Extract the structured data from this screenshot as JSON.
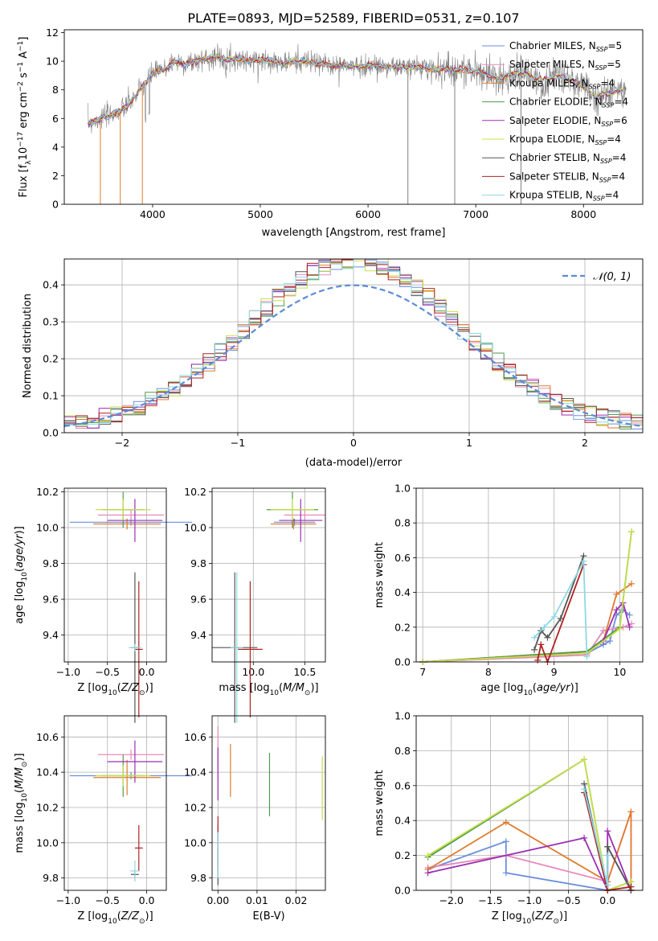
{
  "figure_title": "PLATE=0893, MJD=52589, FIBERID=0531, z=0.107",
  "colors": {
    "Chabrier MILES": "#6a8fdb",
    "Salpeter MILES": "#e88ab8",
    "Kroupa MILES": "#e07b2c",
    "Chabrier ELODIE": "#4f9a4f",
    "Salpeter ELODIE": "#9b2fb2",
    "Kroupa ELODIE": "#c8e04a",
    "Chabrier STELIB": "#555555",
    "Salpeter STELIB": "#b02222",
    "Kroupa STELIB": "#8ed8e2",
    "spectrum": "#808080",
    "normal": "#5b8bd6",
    "grid": "#b0b0b0"
  },
  "chart_data": [
    {
      "id": "spectrum",
      "type": "line",
      "title": "PLATE=0893, MJD=52589, FIBERID=0531, z=0.107",
      "xlabel": "wavelength [Angstrom, rest frame]",
      "ylabel": "Flux [f_λ10^-17 erg cm^-2 s^-1 A^-1]",
      "xlim": [
        3180,
        8550
      ],
      "ylim": [
        0,
        12.2
      ],
      "xticks": [
        4000,
        5000,
        6000,
        7000,
        8000
      ],
      "yticks": [
        0,
        2,
        4,
        6,
        8,
        10,
        12
      ],
      "grid": false,
      "legend_position": "right",
      "legend": [
        {
          "label": "Chabrier MILES",
          "nssp": "5"
        },
        {
          "label": "Salpeter MILES",
          "nssp": "5"
        },
        {
          "label": "Kroupa MILES",
          "nssp": "4"
        },
        {
          "label": "Chabrier ELODIE",
          "nssp": "4"
        },
        {
          "label": "Salpeter ELODIE",
          "nssp": "6"
        },
        {
          "label": "Kroupa ELODIE",
          "nssp": "4"
        },
        {
          "label": "Chabrier STELIB",
          "nssp": "4"
        },
        {
          "label": "Salpeter STELIB",
          "nssp": "4"
        },
        {
          "label": "Kroupa STELIB",
          "nssp": "4"
        }
      ],
      "data_x": [
        3400,
        3450,
        3500,
        3550,
        3600,
        3650,
        3700,
        3750,
        3800,
        3850,
        3900,
        3950,
        4000,
        4100,
        4200,
        4300,
        4400,
        4500,
        4600,
        4700,
        4800,
        4900,
        5000,
        5100,
        5200,
        5300,
        5400,
        5500,
        5600,
        5700,
        5800,
        5900,
        6000,
        6100,
        6200,
        6300,
        6400,
        6500,
        6600,
        6700,
        6800,
        6900,
        7000,
        7100,
        7200,
        7300,
        7400,
        7500,
        7600,
        7700,
        7800,
        7900,
        8000,
        8100,
        8200,
        8300,
        8400,
        8500
      ],
      "data_y": [
        5.6,
        5.8,
        5.9,
        6.1,
        6.2,
        6.4,
        6.5,
        6.8,
        7.2,
        7.6,
        8.2,
        8.6,
        9.2,
        9.4,
        10.0,
        9.8,
        10.0,
        10.2,
        10.3,
        10.1,
        10.2,
        10.0,
        10.1,
        10.1,
        9.8,
        10.0,
        10.0,
        9.9,
        9.8,
        9.7,
        9.7,
        9.6,
        9.7,
        9.7,
        9.6,
        9.6,
        9.6,
        9.6,
        9.4,
        9.5,
        9.4,
        9.4,
        9.3,
        9.1,
        8.8,
        9.0,
        9.2,
        9.0,
        8.7,
        8.9,
        8.9,
        8.6,
        8.2,
        7.6,
        7.7,
        7.9,
        8.0,
        8.0
      ]
    },
    {
      "id": "residuals",
      "type": "histogram",
      "xlabel": "(data-model)/error",
      "ylabel": "Normed distribution",
      "xlim": [
        -2.5,
        2.5
      ],
      "ylim": [
        0,
        0.47
      ],
      "xticks": [
        -2,
        -1,
        0,
        1,
        2
      ],
      "yticks": [
        0.0,
        0.1,
        0.2,
        0.3,
        0.4
      ],
      "grid": true,
      "legend_position": "top-right",
      "legend": [
        {
          "label": "𝒩(0, 1)",
          "mu": 0,
          "sigma": 1
        }
      ]
    },
    {
      "id": "age-vs-Z",
      "type": "errorbar",
      "xlabel": "Z [log10(Z/Z⊙)]",
      "ylabel": "age  [log10(age/yr)]",
      "xlim": [
        -1.05,
        0.25
      ],
      "ylim": [
        9.25,
        10.22
      ],
      "xticks": [
        -1.0,
        -0.5,
        0.0
      ],
      "yticks": [
        9.4,
        9.6,
        9.8,
        10.0,
        10.2
      ],
      "grid": true,
      "points": [
        {
          "model": "Chabrier MILES",
          "x": -0.2,
          "xerr": 0.78,
          "y": 10.03,
          "yerr": 0.02
        },
        {
          "model": "Salpeter MILES",
          "x": -0.2,
          "xerr": 0.42,
          "y": 10.07,
          "yerr": 0.03
        },
        {
          "model": "Kroupa MILES",
          "x": -0.25,
          "xerr": 0.43,
          "y": 10.02,
          "yerr": 0.03
        },
        {
          "model": "Chabrier ELODIE",
          "x": -0.3,
          "xerr": 0.27,
          "y": 10.1,
          "yerr": 0.1
        },
        {
          "model": "Salpeter ELODIE",
          "x": -0.15,
          "xerr": 0.35,
          "y": 10.04,
          "yerr": 0.12
        },
        {
          "model": "Kroupa ELODIE",
          "x": -0.3,
          "xerr": 0.35,
          "y": 10.1,
          "yerr": 0.06
        },
        {
          "model": "Chabrier STELIB",
          "x": -0.15,
          "xerr": 0.05,
          "y": 9.33,
          "yerr": 0.42
        },
        {
          "model": "Salpeter STELIB",
          "x": -0.1,
          "xerr": 0.05,
          "y": 9.32,
          "yerr": 0.38
        },
        {
          "model": "Kroupa STELIB",
          "x": -0.15,
          "xerr": 0.08,
          "y": 9.33,
          "yerr": 0.02
        }
      ]
    },
    {
      "id": "age-vs-mass",
      "type": "errorbar",
      "xlabel": "mass [log10(M/M⊙)]",
      "ylabel": "",
      "xlim": [
        9.6,
        10.7
      ],
      "ylim": [
        9.25,
        10.22
      ],
      "xticks": [
        10.0,
        10.5
      ],
      "yticks": [
        9.4,
        9.6,
        9.8,
        10.0,
        10.2
      ],
      "grid": true,
      "points": [
        {
          "model": "Chabrier MILES",
          "x": 10.4,
          "xerr": 0.2,
          "y": 10.03,
          "yerr": 0.02
        },
        {
          "model": "Salpeter MILES",
          "x": 10.5,
          "xerr": 0.2,
          "y": 10.07,
          "yerr": 0.03
        },
        {
          "model": "Kroupa MILES",
          "x": 10.39,
          "xerr": 0.22,
          "y": 10.02,
          "yerr": 0.03
        },
        {
          "model": "Chabrier ELODIE",
          "x": 10.38,
          "xerr": 0.25,
          "y": 10.1,
          "yerr": 0.1
        },
        {
          "model": "Salpeter ELODIE",
          "x": 10.46,
          "xerr": 0.21,
          "y": 10.04,
          "yerr": 0.12
        },
        {
          "model": "Kroupa ELODIE",
          "x": 10.38,
          "xerr": 0.21,
          "y": 10.1,
          "yerr": 0.06
        },
        {
          "model": "Chabrier STELIB",
          "x": 9.82,
          "xerr": 0.22,
          "y": 9.33,
          "yerr": 0.42
        },
        {
          "model": "Salpeter STELIB",
          "x": 9.97,
          "xerr": 0.12,
          "y": 9.32,
          "yerr": 0.38
        },
        {
          "model": "Kroupa STELIB",
          "x": 9.84,
          "xerr": 0.06,
          "y": 9.33,
          "yerr": 0.42
        }
      ]
    },
    {
      "id": "massweight-vs-age",
      "type": "line",
      "xlabel": "age  [log10(age/yr)]",
      "ylabel": "mass weight",
      "xlim": [
        6.9,
        10.35
      ],
      "ylim": [
        0,
        1.0
      ],
      "xticks": [
        7,
        8,
        9,
        10
      ],
      "yticks": [
        0.0,
        0.2,
        0.4,
        0.6,
        0.8,
        1.0
      ],
      "grid": true,
      "series": [
        {
          "model": "Chabrier MILES",
          "x": [
            7.0,
            9.5,
            9.75,
            9.85,
            9.95,
            10.05,
            10.15
          ],
          "y": [
            0.0,
            0.05,
            0.1,
            0.12,
            0.27,
            0.3,
            0.27
          ]
        },
        {
          "model": "Salpeter MILES",
          "x": [
            7.0,
            9.5,
            9.75,
            10.05,
            10.18
          ],
          "y": [
            0.0,
            0.04,
            0.18,
            0.2,
            0.22
          ]
        },
        {
          "model": "Kroupa MILES",
          "x": [
            7.0,
            9.5,
            9.75,
            9.95,
            10.18
          ],
          "y": [
            0.0,
            0.06,
            0.12,
            0.39,
            0.45
          ]
        },
        {
          "model": "Chabrier ELODIE",
          "x": [
            7.0,
            9.5,
            10.0,
            10.18
          ],
          "y": [
            0.0,
            0.06,
            0.2,
            0.75
          ]
        },
        {
          "model": "Salpeter ELODIE",
          "x": [
            7.0,
            9.5,
            9.75,
            9.95,
            10.05,
            10.15
          ],
          "y": [
            0.0,
            0.05,
            0.12,
            0.3,
            0.34,
            0.2
          ]
        },
        {
          "model": "Kroupa ELODIE",
          "x": [
            7.0,
            9.5,
            10.0,
            10.18
          ],
          "y": [
            0.0,
            0.05,
            0.19,
            0.75
          ]
        },
        {
          "model": "Chabrier STELIB",
          "x": [
            8.7,
            8.8,
            8.9,
            9.1,
            9.45
          ],
          "y": [
            0.07,
            0.18,
            0.14,
            0.25,
            0.61
          ]
        },
        {
          "model": "Salpeter STELIB",
          "x": [
            8.75,
            8.8,
            8.9,
            9.45
          ],
          "y": [
            0.01,
            0.1,
            0.0,
            0.56
          ]
        },
        {
          "model": "Kroupa STELIB",
          "x": [
            8.7,
            8.85,
            9.0,
            9.45,
            9.5
          ],
          "y": [
            0.14,
            0.2,
            0.26,
            0.58,
            0.03
          ]
        }
      ]
    },
    {
      "id": "mass-vs-Z",
      "type": "errorbar",
      "xlabel": "Z [log10(Z/Z⊙)]",
      "ylabel": "mass [log10(M/M⊙)]",
      "xlim": [
        -1.05,
        0.25
      ],
      "ylim": [
        9.73,
        10.72
      ],
      "xticks": [
        -1.0,
        -0.5,
        0.0
      ],
      "yticks": [
        9.8,
        10.0,
        10.2,
        10.4,
        10.6
      ],
      "grid": true,
      "points": [
        {
          "model": "Chabrier MILES",
          "x": -0.2,
          "xerr": 0.78,
          "y": 10.38,
          "yerr": 0.02
        },
        {
          "model": "Salpeter MILES",
          "x": -0.2,
          "xerr": 0.42,
          "y": 10.5,
          "yerr": 0.03
        },
        {
          "model": "Kroupa MILES",
          "x": -0.25,
          "xerr": 0.43,
          "y": 10.37,
          "yerr": 0.1
        },
        {
          "model": "Chabrier ELODIE",
          "x": -0.3,
          "xerr": 0.27,
          "y": 10.38,
          "yerr": 0.12
        },
        {
          "model": "Salpeter ELODIE",
          "x": -0.15,
          "xerr": 0.35,
          "y": 10.46,
          "yerr": 0.12
        },
        {
          "model": "Kroupa ELODIE",
          "x": -0.3,
          "xerr": 0.35,
          "y": 10.38,
          "yerr": 0.06
        },
        {
          "model": "Chabrier STELIB",
          "x": -0.15,
          "xerr": 0.05,
          "y": 9.82,
          "yerr": 0.02
        },
        {
          "model": "Salpeter STELIB",
          "x": -0.1,
          "xerr": 0.05,
          "y": 9.97,
          "yerr": 0.13
        },
        {
          "model": "Kroupa STELIB",
          "x": -0.15,
          "xerr": 0.06,
          "y": 9.84,
          "yerr": 0.06
        }
      ]
    },
    {
      "id": "mass-vs-ebv",
      "type": "errorbar",
      "xlabel": "E(B-V)",
      "ylabel": "",
      "xlim": [
        -0.0015,
        0.0275
      ],
      "ylim": [
        9.73,
        10.72
      ],
      "xticks": [
        0.0,
        0.01,
        0.02
      ],
      "yticks": [
        9.8,
        10.0,
        10.2,
        10.4,
        10.6
      ],
      "grid": true,
      "points": [
        {
          "model": "Chabrier MILES",
          "x": 0.0,
          "xerr": 0,
          "y": 10.0,
          "yerr": 0.1
        },
        {
          "model": "Salpeter MILES",
          "x": 0.0,
          "xerr": 0,
          "y": 10.5,
          "yerr": 0.16
        },
        {
          "model": "Kroupa MILES",
          "x": 0.0032,
          "xerr": 0,
          "y": 10.41,
          "yerr": 0.15
        },
        {
          "model": "Chabrier ELODIE",
          "x": 0.0132,
          "xerr": 0,
          "y": 10.33,
          "yerr": 0.18
        },
        {
          "model": "Salpeter ELODIE",
          "x": 0.0,
          "xerr": 0,
          "y": 10.39,
          "yerr": 0.15
        },
        {
          "model": "Kroupa ELODIE",
          "x": 0.0267,
          "xerr": 0,
          "y": 10.31,
          "yerr": 0.18
        },
        {
          "model": "Chabrier STELIB",
          "x": 0.0,
          "xerr": 0,
          "y": 9.86,
          "yerr": 0.1
        },
        {
          "model": "Salpeter STELIB",
          "x": 0.0,
          "xerr": 0,
          "y": 10.0,
          "yerr": 0.15
        },
        {
          "model": "Kroupa STELIB",
          "x": 0.0,
          "xerr": 0,
          "y": 9.93,
          "yerr": 0.13
        }
      ]
    },
    {
      "id": "massweight-vs-Z",
      "type": "line",
      "xlabel": "Z [log10(Z/Z⊙)]",
      "ylabel": "mass weight",
      "xlim": [
        -2.45,
        0.45
      ],
      "ylim": [
        0,
        1.0
      ],
      "xticks": [
        -2.0,
        -1.5,
        -1.0,
        -0.5,
        0.0
      ],
      "yticks": [
        0.0,
        0.2,
        0.4,
        0.6,
        0.8,
        1.0
      ],
      "grid": true,
      "series": [
        {
          "model": "Chabrier MILES",
          "x": [
            -2.3,
            -1.3,
            -1.3,
            0.0,
            0.0,
            0.3
          ],
          "y": [
            0.12,
            0.28,
            0.1,
            0.0,
            0.25,
            0.0
          ]
        },
        {
          "model": "Salpeter MILES",
          "x": [
            -2.3,
            -1.3,
            0.0,
            0.3,
            0.3
          ],
          "y": [
            0.13,
            0.2,
            0.05,
            0.45,
            0.0
          ]
        },
        {
          "model": "Kroupa MILES",
          "x": [
            -2.3,
            -1.3,
            0.0,
            0.3,
            0.3
          ],
          "y": [
            0.12,
            0.39,
            0.05,
            0.45,
            0.0
          ]
        },
        {
          "model": "Chabrier ELODIE",
          "x": [
            -2.3,
            -0.3,
            0.0,
            0.3
          ],
          "y": [
            0.19,
            0.75,
            0.0,
            0.05
          ]
        },
        {
          "model": "Salpeter ELODIE",
          "x": [
            -2.3,
            -0.3,
            0.0,
            0.0,
            0.3
          ],
          "y": [
            0.1,
            0.3,
            0.0,
            0.34,
            0.0
          ]
        },
        {
          "model": "Kroupa ELODIE",
          "x": [
            -2.3,
            -0.3,
            0.0,
            0.3
          ],
          "y": [
            0.2,
            0.75,
            0.0,
            0.05
          ]
        },
        {
          "model": "Chabrier STELIB",
          "x": [
            -0.3,
            0.0,
            0.0,
            0.3
          ],
          "y": [
            0.61,
            0.0,
            0.25,
            0.0
          ]
        },
        {
          "model": "Salpeter STELIB",
          "x": [
            -0.3,
            0.0,
            0.3
          ],
          "y": [
            0.56,
            0.0,
            0.02
          ]
        },
        {
          "model": "Kroupa STELIB",
          "x": [
            -0.3,
            0.0,
            0.0
          ],
          "y": [
            0.58,
            0.03,
            0.2
          ]
        }
      ]
    }
  ]
}
